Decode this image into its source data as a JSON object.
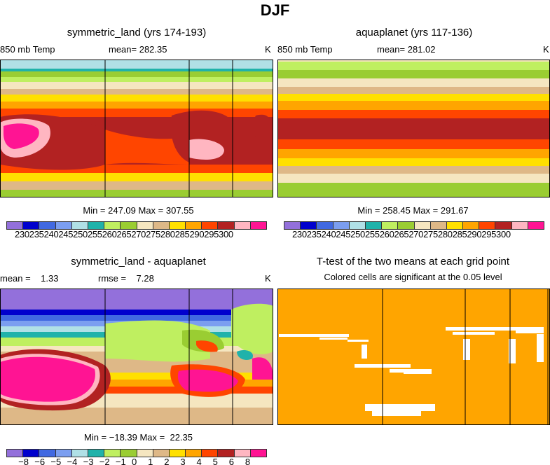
{
  "figure_title": "DJF",
  "colors": [
    "#9370DB",
    "#0000CD",
    "#4169E1",
    "#7B9EF0",
    "#B0E0E6",
    "#20B2AA",
    "#BFEF60",
    "#9ACD32",
    "#F5E6C0",
    "#DEB887",
    "#FFE000",
    "#FFA500",
    "#FF4500",
    "#B22222",
    "#FFB6C1",
    "#FF1493"
  ],
  "sig_color": "#FFA500",
  "panels": {
    "p1": {
      "title": "symmetric_land (yrs 174-193)",
      "left": "850 mb Temp",
      "center": "mean= 282.35",
      "right": "K",
      "minmax": "Min = 247.09 Max = 307.55",
      "cbar_labels": "230235240245250255260265270275280285290295300"
    },
    "p2": {
      "title": "aquaplanet (yrs 117-136)",
      "left": "850 mb Temp",
      "center": "mean= 281.02",
      "right": "K",
      "minmax": "Min = 258.45 Max = 291.67",
      "cbar_labels": "230235240245250255260265270275280285290295300"
    },
    "p3": {
      "title": "symmetric_land - aquaplanet",
      "left": "mean =    1.33",
      "center": "rmse =    7.28",
      "right": "K",
      "minmax": "Min = −18.39 Max =  22.35",
      "cbar_labels": [
        "−8",
        "−6",
        "−5",
        "−4",
        "−3",
        "−2",
        "−1",
        "0",
        "1",
        "2",
        "3",
        "4",
        "5",
        "6",
        "8"
      ]
    },
    "p4": {
      "title": "T-test of the two means at each grid point",
      "subtitle": "Colored cells are significant at the 0.05 level"
    }
  },
  "chart_data": [
    {
      "type": "heatmap",
      "title": "symmetric_land (yrs 174-193)",
      "variable": "850 mb Temp",
      "units": "K",
      "mean": 282.35,
      "min": 247.09,
      "max": 307.55,
      "levels": [
        230,
        235,
        240,
        245,
        250,
        255,
        260,
        265,
        270,
        275,
        280,
        285,
        290,
        295,
        300
      ]
    },
    {
      "type": "heatmap",
      "title": "aquaplanet (yrs 117-136)",
      "variable": "850 mb Temp",
      "units": "K",
      "mean": 281.02,
      "min": 258.45,
      "max": 291.67,
      "levels": [
        230,
        235,
        240,
        245,
        250,
        255,
        260,
        265,
        270,
        275,
        280,
        285,
        290,
        295,
        300
      ]
    },
    {
      "type": "heatmap",
      "title": "symmetric_land - aquaplanet",
      "units": "K",
      "mean": 1.33,
      "rmse": 7.28,
      "min": -18.39,
      "max": 22.35,
      "levels": [
        -8,
        -6,
        -5,
        -4,
        -3,
        -2,
        -1,
        0,
        1,
        2,
        3,
        4,
        5,
        6,
        8
      ]
    },
    {
      "type": "heatmap",
      "title": "T-test of the two means at each grid point",
      "note": "Colored cells are significant at the 0.05 level",
      "significance": 0.05
    }
  ]
}
